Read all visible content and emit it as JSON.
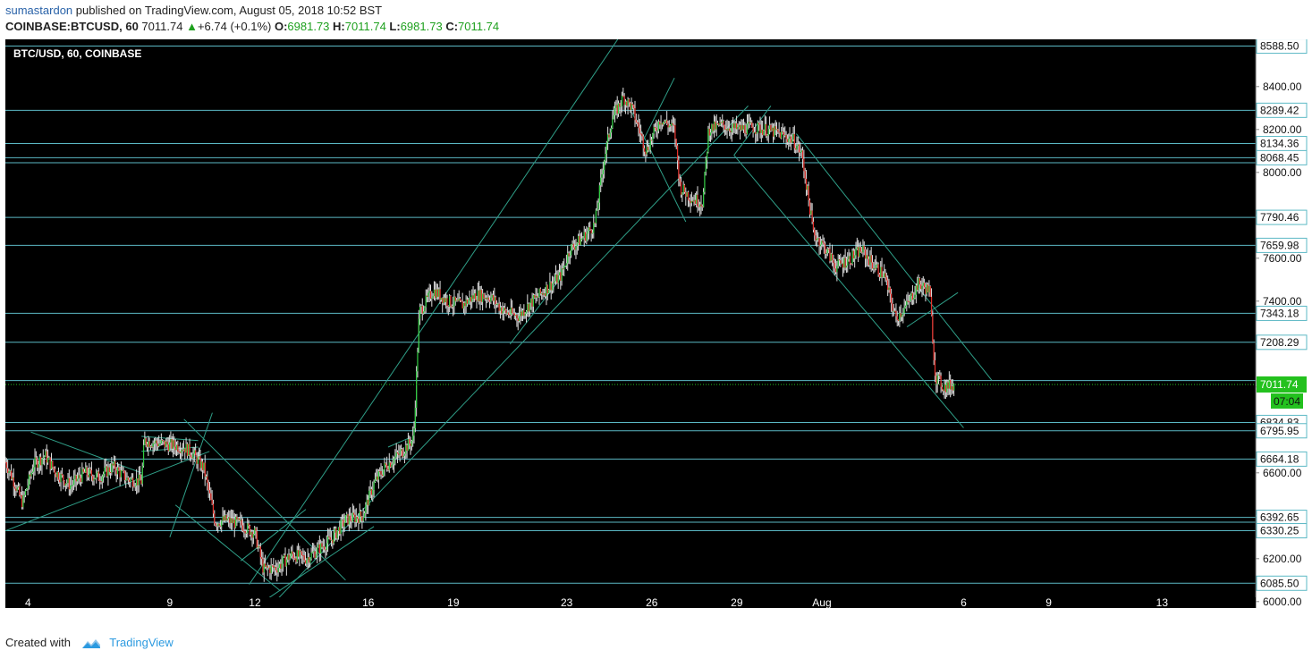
{
  "header": {
    "author": "sumastardon",
    "published_text": "published on TradingView.com, August 05, 2018 10:52 BST",
    "symbol": "COINBASE:BTCUSD, 60",
    "last": "7011.74",
    "change": "+6.74 (+0.1%)",
    "o_label": "O:",
    "o_value": "6981.73",
    "h_label": "H:",
    "h_value": "7011.74",
    "l_label": "L:",
    "l_value": "6981.73",
    "c_label": "C:",
    "c_value": "7011.74"
  },
  "footer": {
    "created_with": "Created with",
    "brand": "TradingView"
  },
  "colors": {
    "background": "#000000",
    "level_line": "#5bb8c4",
    "channel_line": "#2f9f88",
    "candle_up": "#2ecc40",
    "candle_down": "#e8302a",
    "wick": "#e0e0e0",
    "price_tag": "#23c11e",
    "axis_label_bg": "#ffffff"
  },
  "chart_data": {
    "type": "candlestick",
    "title": "BTC/USD, 60, COINBASE",
    "ylim": [
      5970,
      8620
    ],
    "x_day_range": [
      3.2,
      15.9
    ],
    "y_ticks": [
      "8400.00",
      "8200.00",
      "8000.00",
      "7800.00",
      "7600.00",
      "7400.00",
      "7200.00",
      "7000.00",
      "6800.00",
      "6600.00",
      "6400.00",
      "6200.00",
      "6000.00"
    ],
    "x_ticks": [
      {
        "label": "4",
        "day": 4
      },
      {
        "label": "9",
        "day": 9
      },
      {
        "label": "12",
        "day": 12
      },
      {
        "label": "16",
        "day": 16
      },
      {
        "label": "19",
        "day": 19
      },
      {
        "label": "23",
        "day": 23
      },
      {
        "label": "26",
        "day": 26
      },
      {
        "label": "29",
        "day": 29
      },
      {
        "label": "Aug",
        "day": 32
      },
      {
        "label": "6",
        "day": 37
      },
      {
        "label": "9",
        "day": 40
      },
      {
        "label": "13",
        "day": 44
      }
    ],
    "horizontal_levels": [
      8588.5,
      8289.42,
      8134.36,
      8068.45,
      8045.0,
      7790.46,
      7659.98,
      7343.18,
      7208.29,
      7030.0,
      6834.83,
      6795.95,
      6664.18,
      6392.65,
      6370.0,
      6330.25,
      6085.5
    ],
    "level_labels": [
      {
        "label": "8588.50",
        "value": 8588.5
      },
      {
        "label": "8289.42",
        "value": 8289.42
      },
      {
        "label": "8134.36",
        "value": 8134.36
      },
      {
        "label": "8068.45",
        "value": 8068.45
      },
      {
        "label": "7790.46",
        "value": 7790.46
      },
      {
        "label": "7659.98",
        "value": 7659.98
      },
      {
        "label": "7343.18",
        "value": 7343.18
      },
      {
        "label": "7208.29",
        "value": 7208.29
      },
      {
        "label": "6834.83",
        "value": 6834.83
      },
      {
        "label": "6795.95",
        "value": 6795.95
      },
      {
        "label": "6664.18",
        "value": 6664.18
      },
      {
        "label": "6392.65",
        "value": 6392.65
      },
      {
        "label": "6330.25",
        "value": 6330.25
      },
      {
        "label": "6085.50",
        "value": 6085.5
      }
    ],
    "current_price": {
      "label": "7011.74",
      "value": 7011.74,
      "countdown": "07:04"
    },
    "price_path": [
      {
        "day": 3.2,
        "price": 6650
      },
      {
        "day": 3.5,
        "price": 6560
      },
      {
        "day": 3.8,
        "price": 6460
      },
      {
        "day": 4.2,
        "price": 6640
      },
      {
        "day": 4.6,
        "price": 6680
      },
      {
        "day": 5.0,
        "price": 6600
      },
      {
        "day": 5.5,
        "price": 6540
      },
      {
        "day": 6.0,
        "price": 6600
      },
      {
        "day": 6.5,
        "price": 6580
      },
      {
        "day": 7.0,
        "price": 6630
      },
      {
        "day": 7.5,
        "price": 6570
      },
      {
        "day": 8.0,
        "price": 6560
      },
      {
        "day": 8.1,
        "price": 6750
      },
      {
        "day": 8.5,
        "price": 6740
      },
      {
        "day": 9.0,
        "price": 6730
      },
      {
        "day": 9.5,
        "price": 6720
      },
      {
        "day": 9.8,
        "price": 6690
      },
      {
        "day": 10.2,
        "price": 6620
      },
      {
        "day": 10.6,
        "price": 6370
      },
      {
        "day": 11.0,
        "price": 6380
      },
      {
        "day": 11.5,
        "price": 6360
      },
      {
        "day": 12.0,
        "price": 6320
      },
      {
        "day": 12.3,
        "price": 6150
      },
      {
        "day": 12.8,
        "price": 6160
      },
      {
        "day": 13.3,
        "price": 6220
      },
      {
        "day": 13.8,
        "price": 6200
      },
      {
        "day": 14.2,
        "price": 6240
      },
      {
        "day": 14.7,
        "price": 6290
      },
      {
        "day": 15.2,
        "price": 6380
      },
      {
        "day": 15.8,
        "price": 6400
      },
      {
        "day": 16.2,
        "price": 6550
      },
      {
        "day": 16.6,
        "price": 6630
      },
      {
        "day": 17.2,
        "price": 6700
      },
      {
        "day": 17.6,
        "price": 6760
      },
      {
        "day": 17.8,
        "price": 7350
      },
      {
        "day": 18.3,
        "price": 7450
      },
      {
        "day": 18.8,
        "price": 7400
      },
      {
        "day": 19.3,
        "price": 7380
      },
      {
        "day": 19.8,
        "price": 7430
      },
      {
        "day": 20.3,
        "price": 7420
      },
      {
        "day": 20.8,
        "price": 7350
      },
      {
        "day": 21.3,
        "price": 7330
      },
      {
        "day": 21.8,
        "price": 7400
      },
      {
        "day": 22.3,
        "price": 7460
      },
      {
        "day": 22.8,
        "price": 7520
      },
      {
        "day": 23.1,
        "price": 7640
      },
      {
        "day": 23.6,
        "price": 7700
      },
      {
        "day": 24.0,
        "price": 7760
      },
      {
        "day": 24.3,
        "price": 8050
      },
      {
        "day": 24.6,
        "price": 8250
      },
      {
        "day": 25.0,
        "price": 8350
      },
      {
        "day": 25.3,
        "price": 8300
      },
      {
        "day": 25.8,
        "price": 8100
      },
      {
        "day": 26.3,
        "price": 8250
      },
      {
        "day": 26.8,
        "price": 8200
      },
      {
        "day": 27.0,
        "price": 7930
      },
      {
        "day": 27.4,
        "price": 7880
      },
      {
        "day": 27.8,
        "price": 7860
      },
      {
        "day": 28.0,
        "price": 8200
      },
      {
        "day": 28.5,
        "price": 8220
      },
      {
        "day": 29.0,
        "price": 8200
      },
      {
        "day": 29.5,
        "price": 8210
      },
      {
        "day": 30.0,
        "price": 8200
      },
      {
        "day": 30.5,
        "price": 8180
      },
      {
        "day": 31.0,
        "price": 8150
      },
      {
        "day": 31.3,
        "price": 8080
      },
      {
        "day": 31.7,
        "price": 7720
      },
      {
        "day": 32.1,
        "price": 7650
      },
      {
        "day": 32.5,
        "price": 7560
      },
      {
        "day": 33.0,
        "price": 7600
      },
      {
        "day": 33.4,
        "price": 7640
      },
      {
        "day": 33.8,
        "price": 7570
      },
      {
        "day": 34.2,
        "price": 7520
      },
      {
        "day": 34.6,
        "price": 7320
      },
      {
        "day": 35.0,
        "price": 7380
      },
      {
        "day": 35.4,
        "price": 7480
      },
      {
        "day": 35.8,
        "price": 7450
      },
      {
        "day": 36.0,
        "price": 7050
      },
      {
        "day": 36.3,
        "price": 7000
      },
      {
        "day": 36.7,
        "price": 7011.74
      }
    ],
    "trendlines": [
      {
        "d1": 3.2,
        "p1": 6330,
        "d2": 10.4,
        "p2": 6700
      },
      {
        "d1": 4.1,
        "p1": 6790,
        "d2": 8.0,
        "p2": 6600
      },
      {
        "d1": 8.0,
        "p1": 6700,
        "d2": 10.0,
        "p2": 6720
      },
      {
        "d1": 8.0,
        "p1": 6770,
        "d2": 10.0,
        "p2": 6750
      },
      {
        "d1": 9.2,
        "p1": 6450,
        "d2": 12.9,
        "p2": 6050
      },
      {
        "d1": 9.5,
        "p1": 6850,
        "d2": 15.2,
        "p2": 6100
      },
      {
        "d1": 10.5,
        "p1": 6880,
        "d2": 9.0,
        "p2": 6300
      },
      {
        "d1": 11.5,
        "p1": 6190,
        "d2": 13.8,
        "p2": 6430
      },
      {
        "d1": 12.3,
        "p1": 6000,
        "d2": 16.2,
        "p2": 6350
      },
      {
        "d1": 11.8,
        "p1": 6080,
        "d2": 24.8,
        "p2": 8620
      },
      {
        "d1": 16.7,
        "p1": 6720,
        "d2": 17.4,
        "p2": 6760
      },
      {
        "d1": 21.0,
        "p1": 7200,
        "d2": 22.8,
        "p2": 7510
      },
      {
        "d1": 12.5,
        "p1": 5970,
        "d2": 29.4,
        "p2": 8310
      },
      {
        "d1": 25.7,
        "p1": 8150,
        "d2": 26.8,
        "p2": 8440
      },
      {
        "d1": 25.3,
        "p1": 8280,
        "d2": 27.2,
        "p2": 7770
      },
      {
        "d1": 28.9,
        "p1": 8080,
        "d2": 30.2,
        "p2": 8310
      },
      {
        "d1": 28.9,
        "p1": 8080,
        "d2": 37.0,
        "p2": 6810
      },
      {
        "d1": 31.1,
        "p1": 8180,
        "d2": 38.0,
        "p2": 7030
      },
      {
        "d1": 35.0,
        "p1": 7280,
        "d2": 36.8,
        "p2": 7440
      }
    ]
  }
}
